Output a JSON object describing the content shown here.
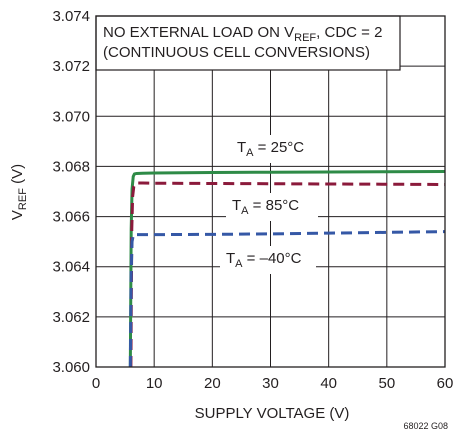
{
  "chart_data": {
    "type": "line",
    "xlabel": "SUPPLY VOLTAGE (V)",
    "ylabel": {
      "main": "V",
      "sub": "REF",
      "tail": " (V)"
    },
    "xlim": [
      0,
      60
    ],
    "ylim": [
      3.06,
      3.074
    ],
    "x_ticks": [
      0,
      10,
      20,
      30,
      40,
      50,
      60
    ],
    "x_tick_labels": [
      "0",
      "10",
      "20",
      "30",
      "40",
      "50",
      "60"
    ],
    "y_ticks": [
      3.06,
      3.062,
      3.064,
      3.066,
      3.068,
      3.07,
      3.072,
      3.074
    ],
    "y_tick_labels": [
      "3.060",
      "3.062",
      "3.064",
      "3.066",
      "3.068",
      "3.070",
      "3.072",
      "3.074"
    ],
    "grid": true,
    "annotation": {
      "line1_pre": "NO EXTERNAL LOAD ON V",
      "line1_sub": "REF",
      "line1_post": ", CDC = 2",
      "line2": "(CONTINUOUS CELL CONVERSIONS)"
    },
    "series": [
      {
        "name": "T_A = 25°C",
        "label": {
          "pre": "T",
          "sub": "A",
          "post": " = 25°C"
        },
        "color": "#2e8b47",
        "dash": "solid",
        "x": [
          5.9,
          6.05,
          6.2,
          6.4,
          6.6,
          7.0,
          8.0,
          10,
          20,
          30,
          40,
          50,
          60
        ],
        "values": [
          3.06,
          3.0655,
          3.0671,
          3.0676,
          3.0677,
          3.06772,
          3.06773,
          3.06774,
          3.06776,
          3.06777,
          3.06778,
          3.06779,
          3.0678
        ]
      },
      {
        "name": "T_A = 85°C",
        "label": {
          "pre": "T",
          "sub": "A",
          "post": " = 85°C"
        },
        "color": "#8b1a3b",
        "dash": "dashed",
        "x": [
          6.0,
          6.15,
          6.3,
          6.5,
          6.8,
          7.2,
          8.0,
          10,
          20,
          30,
          40,
          50,
          60
        ],
        "values": [
          3.06,
          3.0655,
          3.0668,
          3.0672,
          3.06733,
          3.06734,
          3.06734,
          3.06733,
          3.06732,
          3.06731,
          3.0673,
          3.06729,
          3.06728
        ]
      },
      {
        "name": "T_A = –40°C",
        "label": {
          "pre": "T",
          "sub": "A",
          "post": " = –40°C"
        },
        "color": "#3558a6",
        "dash": "dashed",
        "x": [
          5.9,
          6.05,
          6.2,
          6.4,
          6.7,
          7.0,
          8.0,
          10,
          20,
          30,
          40,
          50,
          60
        ],
        "values": [
          3.06,
          3.0638,
          3.065,
          3.06525,
          3.0653,
          3.06528,
          3.06528,
          3.06528,
          3.06529,
          3.06531,
          3.06534,
          3.06537,
          3.0654
        ]
      }
    ],
    "figure_id": "68022 G08"
  }
}
